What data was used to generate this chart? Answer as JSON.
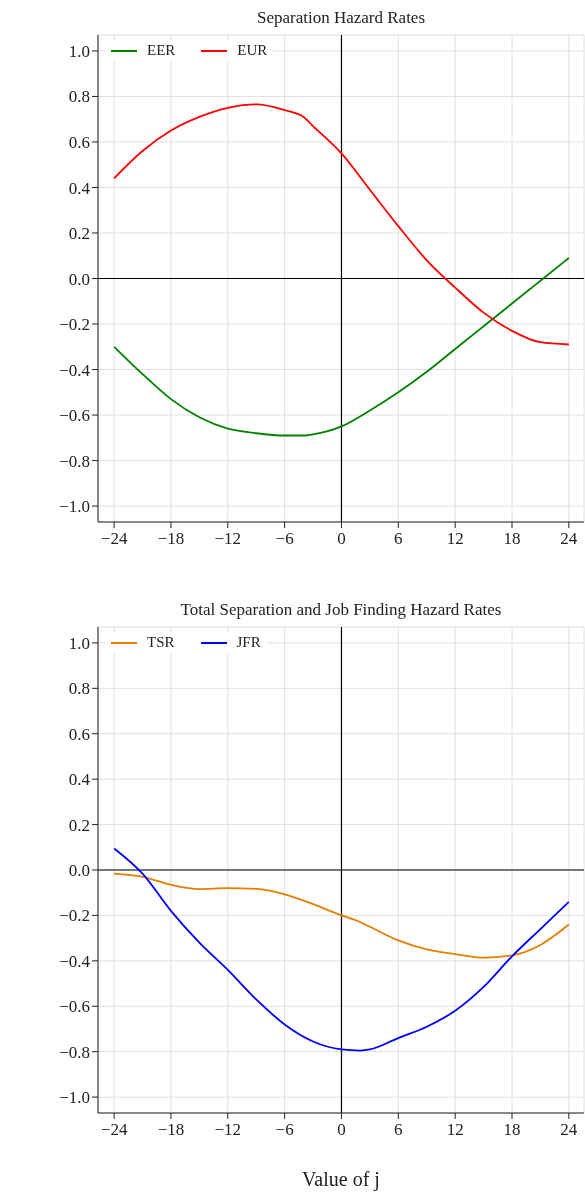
{
  "chart_data": [
    {
      "type": "line",
      "title": "Separation Hazard Rates",
      "x": [
        -24,
        -21,
        -18,
        -15,
        -12,
        -9,
        -6,
        -4,
        -3,
        0,
        3,
        6,
        9,
        12,
        15,
        18,
        21,
        24
      ],
      "series": [
        {
          "name": "EER",
          "color": "#008000",
          "values": [
            -0.3,
            -0.42,
            -0.53,
            -0.61,
            -0.66,
            -0.68,
            -0.69,
            -0.69,
            -0.685,
            -0.65,
            -0.58,
            -0.5,
            -0.41,
            -0.31,
            -0.21,
            -0.11,
            -0.01,
            0.09
          ]
        },
        {
          "name": "EUR",
          "color": "#ff0000",
          "values": [
            0.44,
            0.56,
            0.65,
            0.71,
            0.75,
            0.765,
            0.74,
            0.71,
            0.67,
            0.55,
            0.39,
            0.23,
            0.08,
            -0.04,
            -0.15,
            -0.23,
            -0.28,
            -0.29
          ]
        }
      ],
      "xlim": [
        -25.7,
        25.6
      ],
      "xticks": [
        {
          "value": -24,
          "label": "−24"
        },
        {
          "value": -18,
          "label": "−18"
        },
        {
          "value": -12,
          "label": "−12"
        },
        {
          "value": -6,
          "label": "−6"
        },
        0,
        6,
        12,
        18,
        24
      ],
      "ylim": [
        -1.07,
        1.07
      ],
      "yticks": [
        {
          "value": -1,
          "label": "−1.0"
        },
        {
          "value": -0.8,
          "label": "−0.8"
        },
        {
          "value": -0.6,
          "label": "−0.6"
        },
        {
          "value": -0.4,
          "label": "−0.4"
        },
        {
          "value": -0.2,
          "label": "−0.2"
        },
        {
          "value": 0,
          "label": "0.0"
        },
        0.2,
        0.4,
        0.6,
        0.8,
        {
          "value": 1,
          "label": "1.0"
        }
      ],
      "grid": true,
      "legend": "top left",
      "marker": "none",
      "line_style": "solid"
    },
    {
      "type": "line",
      "title": "Total Separation and Job Finding Hazard Rates",
      "xlabel": "Value of j",
      "x": [
        -24,
        -21,
        -18,
        -15,
        -12,
        -9,
        -6,
        -3,
        0,
        2,
        3,
        6,
        9,
        12,
        15,
        18,
        21,
        24
      ],
      "series": [
        {
          "name": "TSR",
          "color": "#e67e00",
          "values": [
            -0.016,
            -0.03,
            -0.065,
            -0.084,
            -0.08,
            -0.083,
            -0.107,
            -0.15,
            -0.2,
            -0.23,
            -0.25,
            -0.31,
            -0.35,
            -0.37,
            -0.386,
            -0.376,
            -0.33,
            -0.24
          ]
        },
        {
          "name": "JFR",
          "color": "#0000ff",
          "values": [
            0.095,
            -0.016,
            -0.18,
            -0.32,
            -0.44,
            -0.57,
            -0.68,
            -0.755,
            -0.79,
            -0.795,
            -0.79,
            -0.74,
            -0.69,
            -0.62,
            -0.515,
            -0.38,
            -0.26,
            -0.14
          ]
        }
      ],
      "xlim": [
        -25.7,
        25.6
      ],
      "xticks": [
        {
          "value": -24,
          "label": "−24"
        },
        {
          "value": -18,
          "label": "−18"
        },
        {
          "value": -12,
          "label": "−12"
        },
        {
          "value": -6,
          "label": "−6"
        },
        0,
        6,
        12,
        18,
        24
      ],
      "ylim": [
        -1.07,
        1.07
      ],
      "yticks": [
        {
          "value": -1,
          "label": "−1.0"
        },
        {
          "value": -0.8,
          "label": "−0.8"
        },
        {
          "value": -0.6,
          "label": "−0.6"
        },
        {
          "value": -0.4,
          "label": "−0.4"
        },
        {
          "value": -0.2,
          "label": "−0.2"
        },
        {
          "value": 0,
          "label": "0.0"
        },
        0.2,
        0.4,
        0.6,
        0.8,
        {
          "value": 1,
          "label": "1.0"
        }
      ],
      "grid": true,
      "legend": "top left",
      "marker": "none",
      "line_style": "solid"
    }
  ]
}
